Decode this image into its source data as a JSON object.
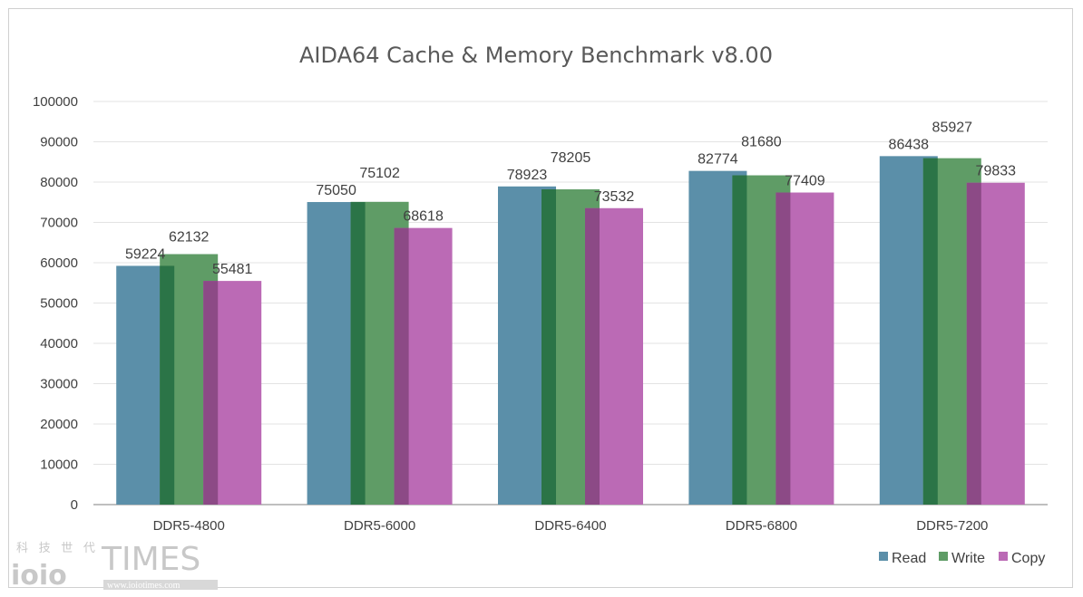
{
  "chart_data": {
    "type": "bar",
    "title": "AIDA64 Cache & Memory Benchmark v8.00",
    "categories": [
      "DDR5-4800",
      "DDR5-6000",
      "DDR5-6400",
      "DDR5-6800",
      "DDR5-7200"
    ],
    "series": [
      {
        "name": "Read",
        "values": [
          59224,
          75050,
          78923,
          82774,
          86438
        ],
        "color": "#5b8fa9"
      },
      {
        "name": "Write",
        "values": [
          62132,
          75102,
          78205,
          81680,
          85927
        ],
        "color": "#5f9c66"
      },
      {
        "name": "Copy",
        "values": [
          55481,
          68618,
          73532,
          77409,
          79833
        ],
        "color": "#bb6ab5"
      }
    ],
    "overlap_colors": [
      "#2b7447",
      "#8c4a86"
    ],
    "ylim": [
      0,
      100000
    ],
    "yticks": [
      0,
      10000,
      20000,
      30000,
      40000,
      50000,
      60000,
      70000,
      80000,
      90000,
      100000
    ],
    "grid": true,
    "legend": "bottom-right",
    "data_labels": true
  },
  "watermark": {
    "cn": "科 技 世 代",
    "logo": "ioio",
    "brand": "TIMES",
    "url": "www.ioiotimes.com"
  }
}
